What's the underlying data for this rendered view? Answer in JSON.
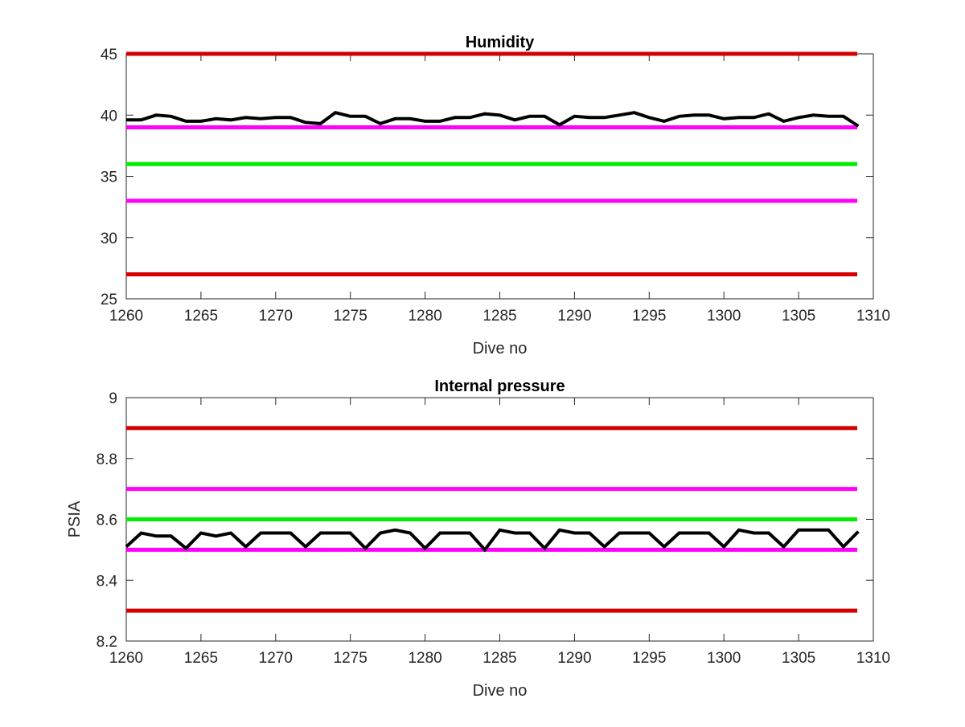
{
  "chart_data": [
    {
      "type": "line",
      "title": "Humidity",
      "xlabel": "Dive no",
      "ylabel": "",
      "xlim": [
        1260,
        1310
      ],
      "ylim": [
        25,
        45
      ],
      "xticks": [
        "1260",
        "1265",
        "1270",
        "1275",
        "1280",
        "1285",
        "1290",
        "1295",
        "1300",
        "1305",
        "1310"
      ],
      "yticks": [
        "25",
        "30",
        "35",
        "40",
        "45"
      ],
      "grid": false,
      "thresholds": [
        {
          "value": 45,
          "color": "#d40000"
        },
        {
          "value": 39,
          "color": "#ff00ff"
        },
        {
          "value": 36,
          "color": "#00ee00"
        },
        {
          "value": 33,
          "color": "#ff00ff"
        },
        {
          "value": 27,
          "color": "#d40000"
        }
      ],
      "series": [
        {
          "color": "#000000",
          "x": [
            1260,
            1261,
            1262,
            1263,
            1264,
            1265,
            1266,
            1267,
            1268,
            1269,
            1270,
            1271,
            1272,
            1273,
            1274,
            1275,
            1276,
            1277,
            1278,
            1279,
            1280,
            1281,
            1282,
            1283,
            1284,
            1285,
            1286,
            1287,
            1288,
            1289,
            1290,
            1291,
            1292,
            1293,
            1294,
            1295,
            1296,
            1297,
            1298,
            1299,
            1300,
            1301,
            1302,
            1303,
            1304,
            1305,
            1306,
            1307,
            1308,
            1309
          ],
          "y": [
            39.6,
            39.6,
            40.0,
            39.9,
            39.5,
            39.5,
            39.7,
            39.6,
            39.8,
            39.7,
            39.8,
            39.8,
            39.4,
            39.3,
            40.2,
            39.9,
            39.9,
            39.3,
            39.7,
            39.7,
            39.5,
            39.5,
            39.8,
            39.8,
            40.1,
            40.0,
            39.6,
            39.9,
            39.9,
            39.2,
            39.9,
            39.8,
            39.8,
            40.0,
            40.2,
            39.8,
            39.5,
            39.9,
            40.0,
            40.0,
            39.7,
            39.8,
            39.8,
            40.1,
            39.5,
            39.8,
            40.0,
            39.9,
            39.9,
            39.1
          ]
        }
      ]
    },
    {
      "type": "line",
      "title": "Internal pressure",
      "xlabel": "Dive no",
      "ylabel": "PSIA",
      "xlim": [
        1260,
        1310
      ],
      "ylim": [
        8.2,
        9
      ],
      "xticks": [
        "1260",
        "1265",
        "1270",
        "1275",
        "1280",
        "1285",
        "1290",
        "1295",
        "1300",
        "1305",
        "1310"
      ],
      "yticks": [
        "8.2",
        "8.4",
        "8.6",
        "8.8",
        "9"
      ],
      "grid": false,
      "thresholds": [
        {
          "value": 8.9,
          "color": "#d40000"
        },
        {
          "value": 8.7,
          "color": "#ff00ff"
        },
        {
          "value": 8.6,
          "color": "#00ee00"
        },
        {
          "value": 8.5,
          "color": "#ff00ff"
        },
        {
          "value": 8.3,
          "color": "#d40000"
        }
      ],
      "series": [
        {
          "color": "#000000",
          "x": [
            1260,
            1261,
            1262,
            1263,
            1264,
            1265,
            1266,
            1267,
            1268,
            1269,
            1270,
            1271,
            1272,
            1273,
            1274,
            1275,
            1276,
            1277,
            1278,
            1279,
            1280,
            1281,
            1282,
            1283,
            1284,
            1285,
            1286,
            1287,
            1288,
            1289,
            1290,
            1291,
            1292,
            1293,
            1294,
            1295,
            1296,
            1297,
            1298,
            1299,
            1300,
            1301,
            1302,
            1303,
            1304,
            1305,
            1306,
            1307,
            1308,
            1309
          ],
          "y": [
            8.51,
            8.555,
            8.545,
            8.545,
            8.505,
            8.555,
            8.545,
            8.555,
            8.51,
            8.555,
            8.555,
            8.555,
            8.51,
            8.555,
            8.555,
            8.555,
            8.505,
            8.555,
            8.565,
            8.555,
            8.505,
            8.555,
            8.555,
            8.555,
            8.5,
            8.565,
            8.555,
            8.555,
            8.505,
            8.565,
            8.555,
            8.555,
            8.51,
            8.555,
            8.555,
            8.555,
            8.51,
            8.555,
            8.555,
            8.555,
            8.51,
            8.565,
            8.555,
            8.555,
            8.51,
            8.565,
            8.565,
            8.565,
            8.51,
            8.56
          ]
        }
      ]
    }
  ]
}
